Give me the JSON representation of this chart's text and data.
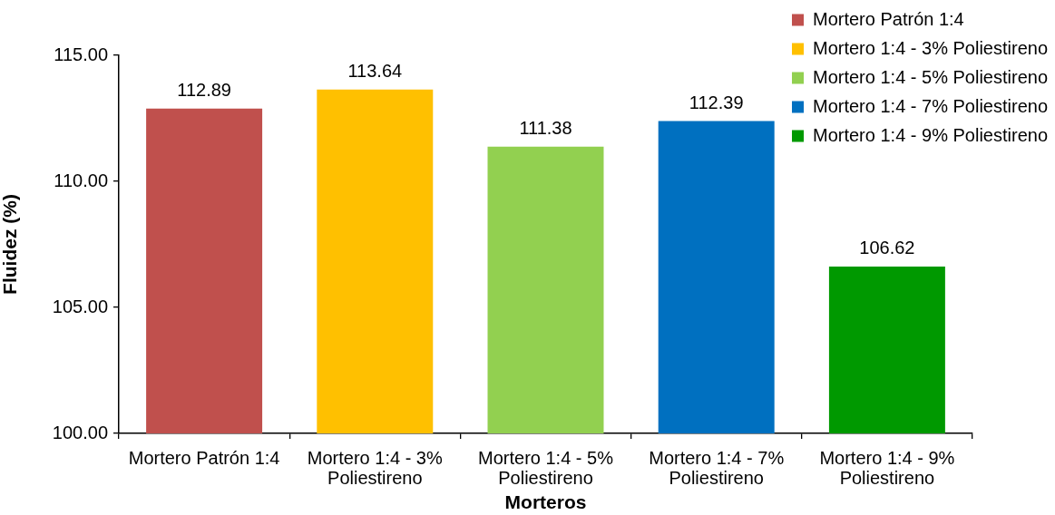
{
  "chart_data": {
    "type": "bar",
    "xlabel": "Morteros",
    "ylabel": "Fluidez (%)",
    "categories": [
      "Mortero Patrón 1:4",
      "Mortero 1:4 - 3% Poliestireno",
      "Mortero 1:4 - 5% Poliestireno",
      "Mortero 1:4 - 7% Poliestireno",
      "Mortero 1:4 - 9% Poliestireno"
    ],
    "series": [
      {
        "name": "Mortero Patrón 1:4",
        "color": "#c0504d",
        "values": [
          112.89,
          null,
          null,
          null,
          null
        ]
      },
      {
        "name": "Mortero 1:4 - 3% Poliestireno",
        "color": "#ffc000",
        "values": [
          null,
          113.64,
          null,
          null,
          null
        ]
      },
      {
        "name": "Mortero 1:4 - 5% Poliestireno",
        "color": "#92d050",
        "values": [
          null,
          null,
          111.38,
          null,
          null
        ]
      },
      {
        "name": "Mortero 1:4 - 7% Poliestireno",
        "color": "#0070c0",
        "values": [
          null,
          null,
          null,
          112.39,
          null
        ]
      },
      {
        "name": "Mortero 1:4 - 9% Poliestireno",
        "color": "#009900",
        "values": [
          null,
          null,
          null,
          null,
          106.62
        ]
      }
    ],
    "ylim": [
      100,
      115
    ],
    "yticks": [
      {
        "value": 100,
        "label": "100.00"
      },
      {
        "value": 105,
        "label": "105.00"
      },
      {
        "value": 110,
        "label": "110.00"
      },
      {
        "value": 115,
        "label": "115.00"
      }
    ],
    "grid": false,
    "legend": "top right",
    "data_labels": true
  }
}
